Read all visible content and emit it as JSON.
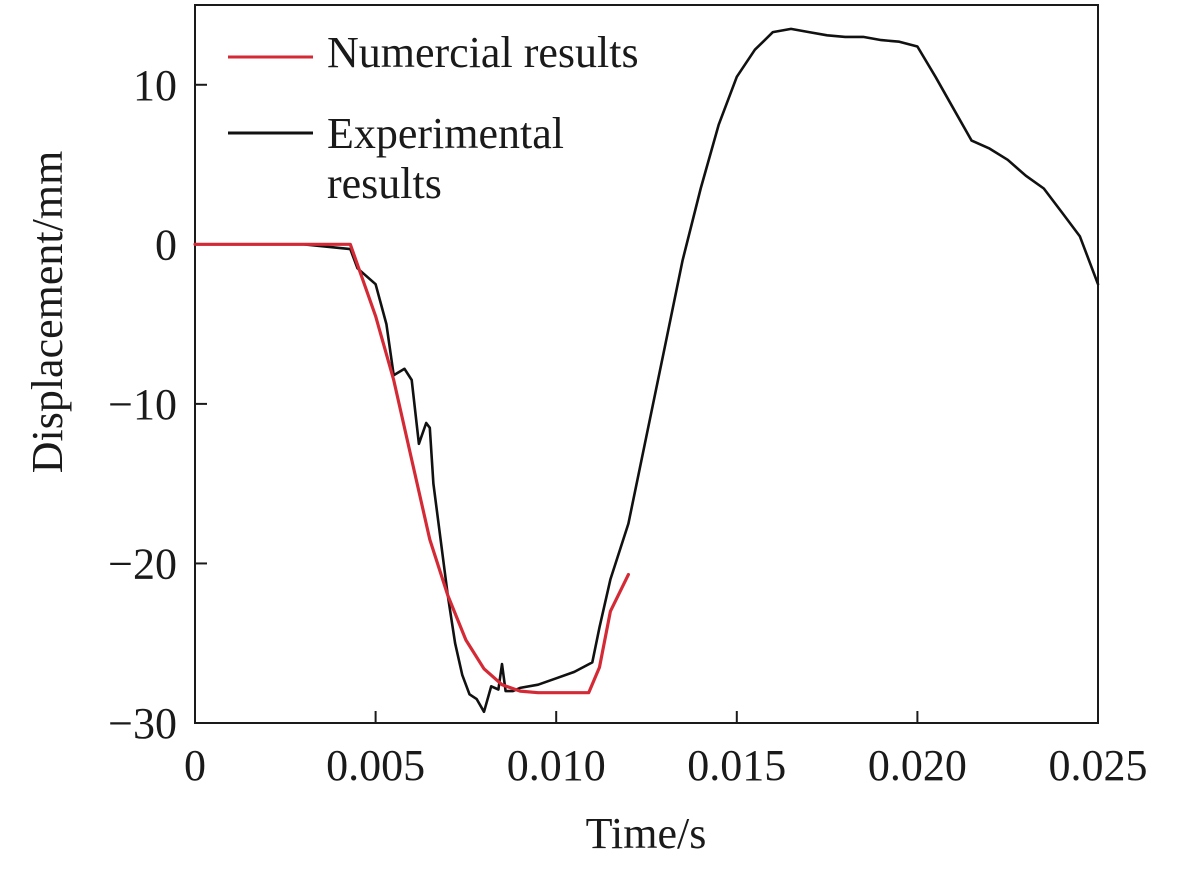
{
  "chart_data": {
    "type": "line",
    "title": "",
    "xlabel": "Time/s",
    "ylabel": "Displacement/mm",
    "xlim": [
      0,
      0.025
    ],
    "ylim": [
      -30,
      15
    ],
    "x_ticks": [
      0,
      0.005,
      0.01,
      0.015,
      0.02,
      0.025
    ],
    "x_tick_labels": [
      "0",
      "0.005",
      "0.010",
      "0.015",
      "0.020",
      "0.025"
    ],
    "y_ticks": [
      -30,
      -20,
      -10,
      0,
      10
    ],
    "y_tick_labels": [
      "−30",
      "−20",
      "−10",
      "0",
      "10"
    ],
    "grid": false,
    "legend_position": "top-left",
    "series": [
      {
        "name": "Numercial results",
        "color": "#d42a36",
        "x": [
          0,
          0.0043,
          0.005,
          0.0055,
          0.006,
          0.0065,
          0.007,
          0.0075,
          0.008,
          0.0085,
          0.009,
          0.0095,
          0.01,
          0.0105,
          0.0109,
          0.0112,
          0.0115,
          0.012
        ],
        "y": [
          0,
          0,
          -4.5,
          -8.5,
          -13.5,
          -18.5,
          -22.0,
          -24.8,
          -26.6,
          -27.6,
          -28.0,
          -28.1,
          -28.1,
          -28.1,
          -28.1,
          -26.5,
          -23.0,
          -20.7
        ]
      },
      {
        "name": "Experimental results",
        "color": "#111111",
        "x": [
          0,
          0.003,
          0.0043,
          0.0045,
          0.005,
          0.0053,
          0.0055,
          0.0058,
          0.006,
          0.0062,
          0.0064,
          0.0065,
          0.0066,
          0.0068,
          0.007,
          0.0072,
          0.0074,
          0.0076,
          0.0078,
          0.008,
          0.0082,
          0.0084,
          0.0085,
          0.0086,
          0.0088,
          0.009,
          0.0095,
          0.01,
          0.0105,
          0.011,
          0.0112,
          0.0115,
          0.012,
          0.0125,
          0.013,
          0.0135,
          0.014,
          0.0145,
          0.015,
          0.0155,
          0.016,
          0.0165,
          0.017,
          0.0175,
          0.018,
          0.0185,
          0.019,
          0.0195,
          0.02,
          0.0205,
          0.021,
          0.0215,
          0.022,
          0.0225,
          0.023,
          0.0235,
          0.024,
          0.0245,
          0.025
        ],
        "y": [
          0,
          0,
          -0.3,
          -1.5,
          -2.5,
          -5.0,
          -8.2,
          -7.8,
          -8.5,
          -12.5,
          -11.2,
          -11.5,
          -15.0,
          -18.5,
          -22.0,
          -25.0,
          -27.0,
          -28.2,
          -28.5,
          -29.3,
          -27.7,
          -27.9,
          -26.3,
          -28.0,
          -28.0,
          -27.8,
          -27.6,
          -27.2,
          -26.8,
          -26.2,
          -24.0,
          -21.0,
          -17.5,
          -12.0,
          -6.5,
          -1.0,
          3.5,
          7.5,
          10.5,
          12.2,
          13.3,
          13.5,
          13.3,
          13.1,
          13.0,
          13.0,
          12.8,
          12.7,
          12.4,
          10.5,
          8.5,
          6.5,
          6.0,
          5.3,
          4.3,
          3.5,
          2.0,
          0.5,
          -2.5
        ]
      }
    ]
  }
}
